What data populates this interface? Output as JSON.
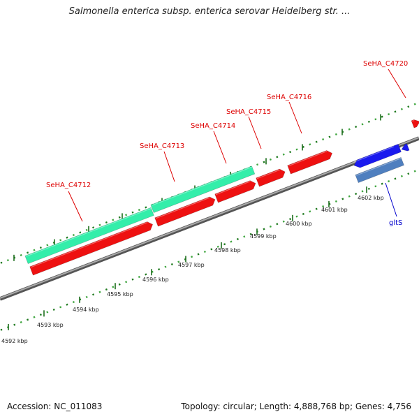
{
  "title": "Salmonella enterica subsp. enterica serovar Heidelberg str. ...",
  "footer": {
    "accession": "Accession: NC_011083",
    "stats": "Topology: circular; Length: 4,888,768 bp; Genes: 4,756"
  },
  "colors": {
    "backbone": "#8c8c8c",
    "tick_dark": "#1f7a1f",
    "tick_light": "#3fa53f",
    "gene_forward": "#ee1111",
    "gene_reverse": "#1a1aee",
    "cds_teal": "#33eeaa",
    "cds_steel": "#4f7fbf",
    "label_red": "#dd0000",
    "label_blue": "#0000cc"
  },
  "ruler_labels": [
    "4592 kbp",
    "4593 kbp",
    "4594 kbp",
    "4595 kbp",
    "4596 kbp",
    "4597 kbp",
    "4598 kbp",
    "4599 kbp",
    "4600 kbp",
    "4601 kbp",
    "4602 kbp"
  ],
  "gene_labels": [
    {
      "name": "SeHA_C4712",
      "color": "label_red"
    },
    {
      "name": "SeHA_C4713",
      "color": "label_red"
    },
    {
      "name": "SeHA_C4714",
      "color": "label_red"
    },
    {
      "name": "SeHA_C4715",
      "color": "label_red"
    },
    {
      "name": "SeHA_C4716",
      "color": "label_red"
    },
    {
      "name": "SeHA_C4720",
      "color": "label_red"
    },
    {
      "name": "gltS",
      "color": "label_blue"
    }
  ]
}
